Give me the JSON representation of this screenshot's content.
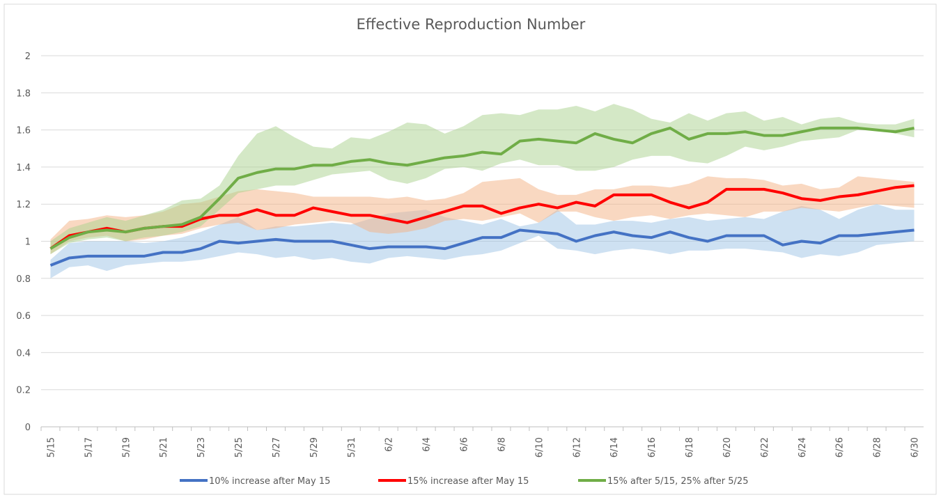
{
  "chart_data": {
    "type": "line",
    "title": "Effective Reproduction Number",
    "categories": [
      "5/15",
      null,
      "5/17",
      null,
      "5/19",
      null,
      "5/21",
      null,
      "5/23",
      null,
      "5/25",
      null,
      "5/27",
      null,
      "5/29",
      null,
      "5/31",
      null,
      "6/2",
      null,
      "6/4",
      null,
      "6/6",
      null,
      "6/8",
      null,
      "6/10",
      null,
      "6/12",
      null,
      "6/14",
      null,
      "6/16",
      null,
      "6/18",
      null,
      "6/20",
      null,
      "6/22",
      null,
      "6/24",
      null,
      "6/26",
      null,
      "6/28",
      null,
      "6/30"
    ],
    "ylim": [
      0,
      2
    ],
    "yticks": [
      0,
      0.2,
      0.4,
      0.6,
      0.8,
      1,
      1.2,
      1.4,
      1.6,
      1.8,
      2
    ],
    "grid": true,
    "legend": "bottom",
    "series": [
      {
        "name": "10% increase after May 15",
        "color": "#4472c4",
        "band_color": "#9dc3e6",
        "values": [
          0.87,
          0.91,
          0.92,
          0.92,
          0.92,
          0.92,
          0.94,
          0.94,
          0.96,
          1.0,
          0.99,
          1.0,
          1.01,
          1.0,
          1.0,
          1.0,
          0.98,
          0.96,
          0.97,
          0.97,
          0.97,
          0.96,
          0.99,
          1.02,
          1.02,
          1.06,
          1.05,
          1.04,
          1.0,
          1.03,
          1.05,
          1.03,
          1.02,
          1.05,
          1.02,
          1.0,
          1.03,
          1.03,
          1.03,
          0.98,
          1.0,
          0.99,
          1.03,
          1.03,
          1.04,
          1.05,
          1.06
        ],
        "lower": [
          0.8,
          0.86,
          0.87,
          0.84,
          0.87,
          0.88,
          0.89,
          0.89,
          0.9,
          0.92,
          0.94,
          0.93,
          0.91,
          0.92,
          0.9,
          0.91,
          0.89,
          0.88,
          0.91,
          0.92,
          0.91,
          0.9,
          0.92,
          0.93,
          0.95,
          0.99,
          1.03,
          0.96,
          0.95,
          0.93,
          0.95,
          0.96,
          0.95,
          0.93,
          0.95,
          0.95,
          0.96,
          0.96,
          0.95,
          0.94,
          0.91,
          0.93,
          0.92,
          0.94,
          0.98,
          0.99,
          1.0
        ],
        "upper": [
          0.9,
          0.99,
          1.0,
          1.0,
          1.0,
          0.99,
          1.0,
          1.02,
          1.05,
          1.09,
          1.13,
          1.06,
          1.08,
          1.08,
          1.09,
          1.1,
          1.09,
          1.12,
          1.15,
          1.16,
          1.17,
          1.13,
          1.11,
          1.09,
          1.12,
          1.08,
          1.1,
          1.17,
          1.09,
          1.09,
          1.11,
          1.11,
          1.1,
          1.12,
          1.13,
          1.11,
          1.12,
          1.13,
          1.12,
          1.16,
          1.19,
          1.17,
          1.12,
          1.17,
          1.2,
          1.17,
          1.17
        ]
      },
      {
        "name": "15% increase after May 15",
        "color": "#ff0000",
        "band_color": "#f4b183",
        "values": [
          0.96,
          1.03,
          1.05,
          1.07,
          1.05,
          1.07,
          1.08,
          1.08,
          1.12,
          1.14,
          1.14,
          1.17,
          1.14,
          1.14,
          1.18,
          1.16,
          1.14,
          1.14,
          1.12,
          1.1,
          1.13,
          1.16,
          1.19,
          1.19,
          1.15,
          1.18,
          1.2,
          1.18,
          1.21,
          1.19,
          1.25,
          1.25,
          1.25,
          1.21,
          1.18,
          1.21,
          1.28,
          1.28,
          1.28,
          1.26,
          1.23,
          1.22,
          1.24,
          1.25,
          1.27,
          1.29,
          1.3
        ],
        "lower": [
          0.93,
          1.0,
          1.02,
          1.03,
          1.0,
          1.01,
          1.03,
          1.04,
          1.07,
          1.09,
          1.1,
          1.06,
          1.07,
          1.09,
          1.1,
          1.11,
          1.1,
          1.05,
          1.04,
          1.05,
          1.07,
          1.11,
          1.12,
          1.11,
          1.13,
          1.15,
          1.1,
          1.16,
          1.16,
          1.13,
          1.11,
          1.13,
          1.14,
          1.12,
          1.14,
          1.15,
          1.14,
          1.13,
          1.16,
          1.16,
          1.18,
          1.17,
          1.16,
          1.18,
          1.2,
          1.19,
          1.18
        ],
        "upper": [
          1.01,
          1.11,
          1.12,
          1.14,
          1.13,
          1.14,
          1.16,
          1.2,
          1.21,
          1.24,
          1.27,
          1.28,
          1.27,
          1.26,
          1.24,
          1.24,
          1.24,
          1.24,
          1.23,
          1.24,
          1.22,
          1.23,
          1.26,
          1.32,
          1.33,
          1.34,
          1.28,
          1.25,
          1.25,
          1.28,
          1.28,
          1.3,
          1.3,
          1.29,
          1.31,
          1.35,
          1.34,
          1.34,
          1.33,
          1.3,
          1.31,
          1.28,
          1.29,
          1.35,
          1.34,
          1.33,
          1.32
        ]
      },
      {
        "name": "15% after 5/15, 25% after 5/25",
        "color": "#70ad47",
        "band_color": "#a9d18e",
        "values": [
          0.96,
          1.02,
          1.05,
          1.06,
          1.05,
          1.07,
          1.08,
          1.09,
          1.13,
          1.23,
          1.34,
          1.37,
          1.39,
          1.39,
          1.41,
          1.41,
          1.43,
          1.44,
          1.42,
          1.41,
          1.43,
          1.45,
          1.46,
          1.48,
          1.47,
          1.54,
          1.55,
          1.54,
          1.53,
          1.58,
          1.55,
          1.53,
          1.58,
          1.61,
          1.55,
          1.58,
          1.58,
          1.59,
          1.57,
          1.57,
          1.59,
          1.61,
          1.61,
          1.61,
          1.6,
          1.59,
          1.61
        ],
        "lower": [
          0.93,
          0.99,
          1.01,
          1.02,
          1.0,
          1.02,
          1.03,
          1.05,
          1.08,
          1.17,
          1.26,
          1.28,
          1.3,
          1.3,
          1.33,
          1.36,
          1.37,
          1.38,
          1.33,
          1.31,
          1.34,
          1.39,
          1.4,
          1.38,
          1.42,
          1.44,
          1.41,
          1.41,
          1.38,
          1.38,
          1.4,
          1.44,
          1.46,
          1.46,
          1.43,
          1.42,
          1.46,
          1.51,
          1.49,
          1.51,
          1.54,
          1.55,
          1.56,
          1.6,
          1.6,
          1.58,
          1.56
        ],
        "upper": [
          1.0,
          1.07,
          1.1,
          1.13,
          1.11,
          1.14,
          1.17,
          1.22,
          1.23,
          1.3,
          1.46,
          1.58,
          1.62,
          1.56,
          1.51,
          1.5,
          1.56,
          1.55,
          1.59,
          1.64,
          1.63,
          1.58,
          1.62,
          1.68,
          1.69,
          1.68,
          1.71,
          1.71,
          1.73,
          1.7,
          1.74,
          1.71,
          1.66,
          1.64,
          1.69,
          1.65,
          1.69,
          1.7,
          1.65,
          1.67,
          1.63,
          1.66,
          1.67,
          1.64,
          1.63,
          1.63,
          1.66
        ]
      }
    ]
  }
}
